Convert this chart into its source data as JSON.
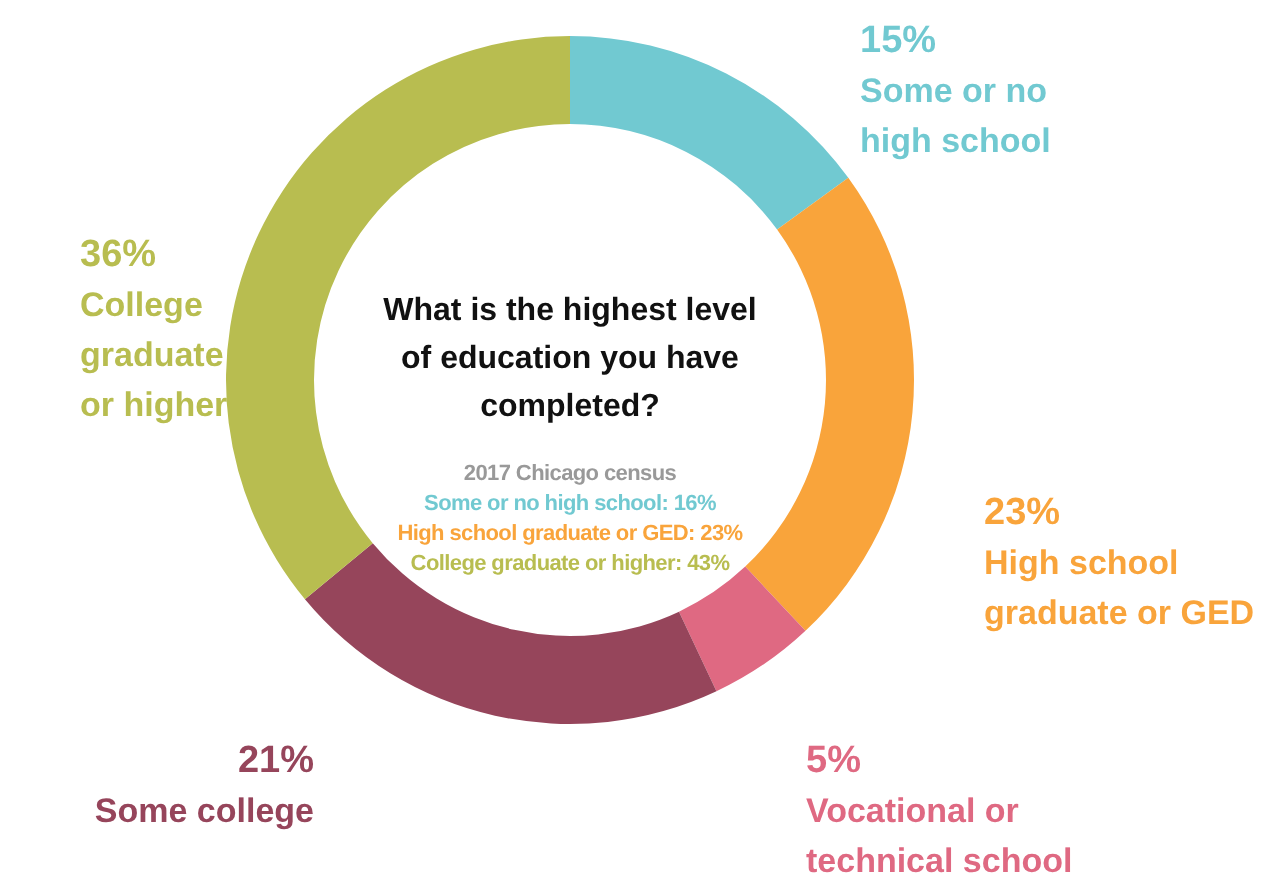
{
  "chart_data": {
    "type": "donut",
    "title": "What is the highest level of education you have completed?",
    "categories": [
      "Some or no high school",
      "High school graduate or GED",
      "Vocational or technical school",
      "Some college",
      "College graduate or higher"
    ],
    "values": [
      15,
      23,
      5,
      21,
      36
    ],
    "colors": [
      "#71c9d1",
      "#f9a43b",
      "#df6982",
      "#96455b",
      "#b8bd50"
    ],
    "value_labels": [
      "15%",
      "23%",
      "5%",
      "21%",
      "36%"
    ],
    "annotations": [
      "2017 Chicago census",
      "Some or no high school: 16%",
      "High school graduate or GED: 23%",
      "College graduate or higher: 43%"
    ]
  }
}
